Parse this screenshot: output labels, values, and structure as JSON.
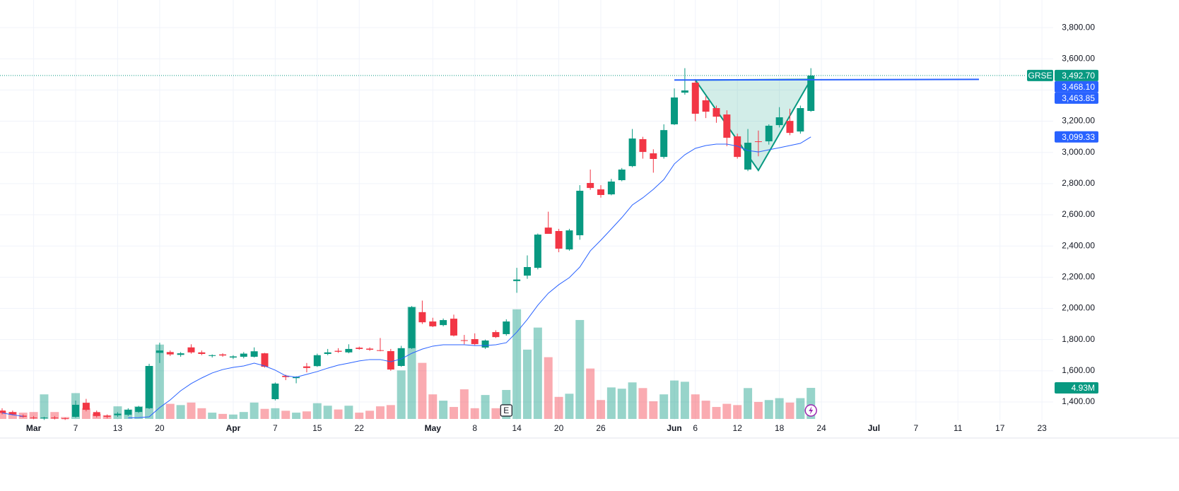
{
  "chart_data": {
    "type": "candlestick",
    "symbol": "GRSE",
    "ylim": [
      1169,
      3977
    ],
    "yticks": [
      {
        "value": 1400,
        "label": "1,400.00"
      },
      {
        "value": 1600,
        "label": "1,600.00"
      },
      {
        "value": 1800,
        "label": "1,800.00"
      },
      {
        "value": 2000,
        "label": "2,000.00"
      },
      {
        "value": 2200,
        "label": "2,200.00"
      },
      {
        "value": 2400,
        "label": "2,400.00"
      },
      {
        "value": 2600,
        "label": "2,600.00"
      },
      {
        "value": 2800,
        "label": "2,800.00"
      },
      {
        "value": 3000,
        "label": "3,000.00"
      },
      {
        "value": 3200,
        "label": "3,200.00"
      },
      {
        "value": 3400,
        "label": "3,400.00"
      },
      {
        "value": 3600,
        "label": "3,600.00"
      },
      {
        "value": 3800,
        "label": "3,800.00"
      }
    ],
    "volume_lim": [
      0,
      20
    ],
    "grid": true,
    "up_color": "#089981",
    "down_color": "#f23645",
    "ma_color": "#2962ff",
    "categories": [
      null,
      null,
      null,
      "Mar",
      null,
      null,
      null,
      "7",
      null,
      null,
      null,
      "13",
      null,
      null,
      null,
      "20",
      null,
      null,
      null,
      null,
      null,
      null,
      "Apr",
      null,
      null,
      null,
      "7",
      null,
      null,
      null,
      "15",
      null,
      null,
      null,
      "22",
      null,
      null,
      null,
      null,
      null,
      null,
      "May",
      null,
      null,
      null,
      "8",
      null,
      null,
      null,
      "14",
      null,
      null,
      null,
      "20",
      null,
      null,
      null,
      "26",
      null,
      null,
      null,
      null,
      null,
      null,
      "Jun",
      null,
      "6",
      null,
      null,
      null,
      "12",
      null,
      null,
      null,
      "18",
      null,
      null,
      null,
      "24",
      null,
      null,
      null,
      null,
      "Jul",
      null,
      null,
      null,
      "7",
      null,
      null,
      null,
      "11",
      null,
      null,
      null,
      "17",
      null,
      null,
      null,
      "23",
      null
    ],
    "open": [
      1345,
      1335,
      1312,
      1300,
      1296,
      1300,
      1295,
      1305,
      1395,
      1335,
      1312,
      1315,
      1318,
      1336,
      1360,
      1715,
      1720,
      1702,
      1750,
      1718,
      1695,
      1705,
      1685,
      1690,
      1690,
      1712,
      1418,
      1568,
      1553,
      1628,
      1630,
      1708,
      1728,
      1718,
      1748,
      1742,
      1732,
      1726,
      1631,
      1745,
      1976,
      1916,
      1893,
      1934,
      1796,
      1803,
      1749,
      1848,
      1835,
      2175,
      2210,
      2260,
      2518,
      2496,
      2378,
      2469,
      2804,
      2763,
      2731,
      2822,
      2912,
      3085,
      2994,
      2971,
      3180,
      3383,
      3447,
      3334,
      3284,
      3243,
      3103,
      2890,
      3071,
      3071,
      3175,
      3202,
      3134,
      3266,
      null,
      null,
      null,
      null,
      null,
      null,
      null,
      null,
      null,
      null,
      null,
      null,
      null,
      null,
      null,
      null,
      null,
      null,
      null,
      null,
      null,
      null,
      null
    ],
    "high": [
      1360,
      1345,
      1320,
      1310,
      1305,
      1310,
      1300,
      1409,
      1420,
      1345,
      1320,
      1335,
      1360,
      1375,
      1645,
      1780,
      1730,
      1720,
      1770,
      1730,
      1705,
      1712,
      1700,
      1720,
      1750,
      1715,
      1525,
      1575,
      1565,
      1650,
      1710,
      1740,
      1745,
      1770,
      1755,
      1750,
      1810,
      1740,
      1760,
      2015,
      2050,
      1940,
      1935,
      1960,
      1830,
      1840,
      1800,
      1860,
      1930,
      2260,
      2340,
      2480,
      2620,
      2510,
      2510,
      2790,
      2890,
      2790,
      2830,
      2900,
      3150,
      3100,
      3020,
      3180,
      3410,
      3540,
      3470,
      3360,
      3300,
      3270,
      3120,
      3150,
      3140,
      3180,
      3290,
      3280,
      3300,
      3540,
      null,
      null,
      null,
      null,
      null,
      null,
      null,
      null,
      null,
      null,
      null,
      null,
      null,
      null,
      null,
      null,
      null,
      null,
      null,
      null,
      null,
      null,
      null
    ],
    "low": [
      1320,
      1315,
      1300,
      1290,
      1285,
      1288,
      1285,
      1300,
      1340,
      1300,
      1295,
      1305,
      1310,
      1330,
      1355,
      1650,
      1695,
      1690,
      1710,
      1700,
      1685,
      1690,
      1675,
      1680,
      1685,
      1620,
      1410,
      1540,
      1520,
      1590,
      1625,
      1700,
      1715,
      1712,
      1735,
      1728,
      1725,
      1600,
      1625,
      1740,
      1900,
      1880,
      1885,
      1820,
      1770,
      1765,
      1740,
      1810,
      1825,
      2100,
      2190,
      2250,
      2480,
      2360,
      2370,
      2440,
      2760,
      2710,
      2725,
      2815,
      2905,
      2960,
      2870,
      2960,
      3175,
      3370,
      3200,
      3220,
      3190,
      3040,
      2960,
      2880,
      2975,
      3050,
      3160,
      3110,
      3120,
      3260,
      null,
      null,
      null,
      null,
      null,
      null,
      null,
      null,
      null,
      null,
      null,
      null,
      null,
      null,
      null,
      null,
      null,
      null,
      null,
      null,
      null,
      null,
      null
    ],
    "close": [
      1330,
      1320,
      1305,
      1296,
      1300,
      1295,
      1292,
      1382,
      1350,
      1310,
      1305,
      1325,
      1350,
      1368,
      1631,
      1730,
      1705,
      1712,
      1718,
      1708,
      1700,
      1698,
      1692,
      1710,
      1725,
      1626,
      1518,
      1560,
      1560,
      1618,
      1700,
      1718,
      1722,
      1740,
      1740,
      1735,
      1728,
      1608,
      1745,
      2008,
      1911,
      1885,
      1925,
      1826,
      1792,
      1771,
      1794,
      1816,
      1916,
      2185,
      2265,
      2473,
      2478,
      2383,
      2500,
      2754,
      2772,
      2727,
      2813,
      2890,
      3089,
      3003,
      2958,
      3143,
      3352,
      3397,
      3248,
      3261,
      3229,
      3094,
      2971,
      3062,
      3067,
      3171,
      3225,
      3125,
      3284,
      3492.7,
      null,
      null,
      null,
      null,
      null,
      null,
      null,
      null,
      null,
      null,
      null,
      null,
      null,
      null,
      null,
      null,
      null,
      null,
      null,
      null,
      null,
      null,
      null
    ],
    "volume": [
      1.2,
      1.1,
      1.0,
      1.1,
      3.9,
      1.1,
      0.3,
      4.1,
      1.7,
      0.8,
      0.6,
      2.0,
      1.5,
      2.0,
      8.4,
      11.8,
      2.4,
      2.2,
      2.6,
      1.7,
      1.0,
      0.8,
      0.7,
      1.1,
      2.6,
      1.6,
      1.7,
      1.3,
      1.0,
      1.2,
      2.5,
      2.1,
      1.5,
      2.1,
      1.0,
      1.3,
      2.0,
      2.2,
      7.7,
      17.8,
      8.9,
      3.9,
      2.9,
      1.9,
      4.7,
      1.7,
      3.8,
      1.7,
      4.6,
      17.4,
      11.0,
      14.5,
      9.8,
      3.5,
      4.0,
      15.7,
      8.0,
      3.0,
      5.0,
      4.8,
      5.8,
      4.9,
      2.8,
      3.9,
      6.1,
      5.9,
      3.9,
      2.9,
      1.9,
      2.4,
      2.2,
      4.9,
      2.7,
      3.0,
      3.3,
      2.6,
      3.3,
      4.93,
      null,
      null,
      null,
      null,
      null,
      null,
      null,
      null,
      null,
      null,
      null,
      null,
      null,
      null,
      null,
      null,
      null,
      null,
      null,
      null,
      null,
      null,
      null
    ],
    "ma": [
      1330,
      1318,
      1308,
      null,
      null,
      null,
      null,
      null,
      null,
      null,
      null,
      null,
      1298,
      1300,
      1305,
      1364,
      1413,
      1472,
      1518,
      1554,
      1586,
      1608,
      1622,
      1631,
      1649,
      1631,
      1604,
      1568,
      1559,
      1577,
      1595,
      1617,
      1636,
      1649,
      1663,
      1672,
      1672,
      1658,
      1676,
      1712,
      1739,
      1758,
      1767,
      1767,
      1767,
      1762,
      1762,
      1767,
      1780,
      1848,
      1929,
      2020,
      2097,
      2152,
      2197,
      2265,
      2369,
      2437,
      2509,
      2582,
      2663,
      2709,
      2763,
      2826,
      2926,
      2985,
      3026,
      3044,
      3053,
      3053,
      3040,
      3012,
      3003,
      3017,
      3030,
      3044,
      3058,
      3099.33,
      null,
      null,
      null,
      null,
      null,
      null,
      null,
      null,
      null,
      null,
      null,
      null,
      null,
      null,
      null,
      null,
      null,
      null,
      null,
      null,
      null,
      null,
      null
    ],
    "last_price": {
      "value": 3492.7,
      "label": "3,492.70"
    },
    "ma_label": {
      "value": 3099.33,
      "label": "3,099.33"
    },
    "volume_label": {
      "value": 4.93,
      "label": "4.93M"
    },
    "trendline": {
      "x": [
        64,
        93
      ],
      "values": [
        3463.85,
        3468.1
      ],
      "labels": [
        "3,463.85",
        "3,468.10"
      ]
    },
    "pattern": {
      "x": [
        66,
        72,
        77
      ],
      "values": [
        3463.85,
        2885,
        3468.1
      ]
    },
    "earnings_marker": {
      "x": 48,
      "label": "E"
    }
  }
}
